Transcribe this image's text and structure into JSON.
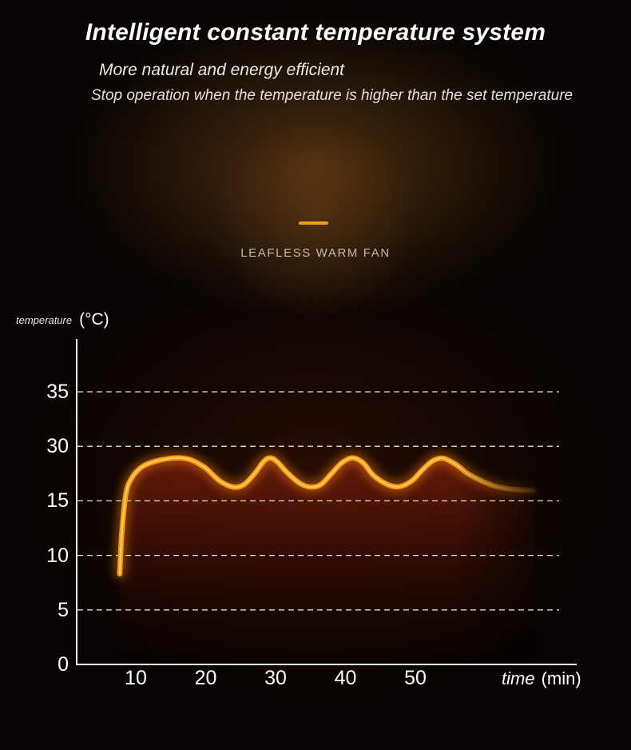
{
  "header": {
    "title": "Intelligent constant temperature system",
    "subtitle_1": "More natural and energy efficient",
    "subtitle_2": "Stop operation when the temperature is higher than the set temperature"
  },
  "product": {
    "label": "LEAFLESS WARM FAN"
  },
  "colors": {
    "accent_orange": "#f09c1e",
    "curve_orange": "#f59c15",
    "curve_highlight": "#ffd171",
    "fill_red": "#6e1d0c",
    "background": "#060302",
    "text_white": "#ffffff",
    "label_tan": "#c9b8a1"
  },
  "chart_data": {
    "type": "line",
    "title": "",
    "x_axis": {
      "label": "time",
      "unit": "(min)",
      "ticks": [
        10,
        20,
        30,
        40,
        50
      ]
    },
    "y_axis": {
      "label": "temperature",
      "unit": "(°C)",
      "ticks": [
        0,
        5,
        10,
        15,
        30,
        35
      ]
    },
    "grid": {
      "horizontal_dashed": true,
      "vertical": false
    },
    "legend": "none",
    "series": [
      {
        "name": "temperature",
        "points": [
          [
            7.7,
            8.3
          ],
          [
            8.0,
            12
          ],
          [
            8.6,
            17
          ],
          [
            9.5,
            21.5
          ],
          [
            11,
            24.5
          ],
          [
            13,
            26
          ],
          [
            15,
            26.7
          ],
          [
            16.5,
            26.8
          ],
          [
            18,
            26.2
          ],
          [
            20,
            24
          ],
          [
            22,
            20.5
          ],
          [
            24,
            18.8
          ],
          [
            25.5,
            19.5
          ],
          [
            27,
            22.5
          ],
          [
            28.3,
            25.8
          ],
          [
            29.2,
            26.8
          ],
          [
            30.2,
            25.8
          ],
          [
            31.8,
            22.5
          ],
          [
            33.5,
            19.8
          ],
          [
            35,
            18.8
          ],
          [
            36.5,
            19.5
          ],
          [
            38,
            22.5
          ],
          [
            39.5,
            25.5
          ],
          [
            41,
            26.8
          ],
          [
            42.5,
            25.5
          ],
          [
            44,
            22
          ],
          [
            46,
            19.5
          ],
          [
            47.7,
            18.9
          ],
          [
            49.5,
            20.5
          ],
          [
            51,
            23.5
          ],
          [
            52.5,
            26
          ],
          [
            54,
            26.7
          ],
          [
            55.8,
            25
          ],
          [
            57.5,
            22.5
          ],
          [
            59.5,
            20.5
          ],
          [
            61.5,
            19
          ],
          [
            64,
            18.2
          ],
          [
            67,
            17.8
          ]
        ]
      }
    ]
  }
}
